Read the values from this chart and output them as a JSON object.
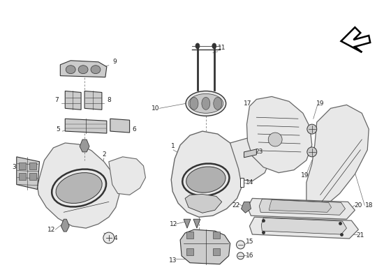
{
  "bg_color": "#ffffff",
  "line_color": "#666666",
  "dark_color": "#333333",
  "fill_light": "#e8e8e8",
  "fill_mid": "#cccccc",
  "fill_dark": "#999999",
  "label_fontsize": 6.5,
  "label_color": "#222222",
  "fig_width": 5.5,
  "fig_height": 4.0
}
